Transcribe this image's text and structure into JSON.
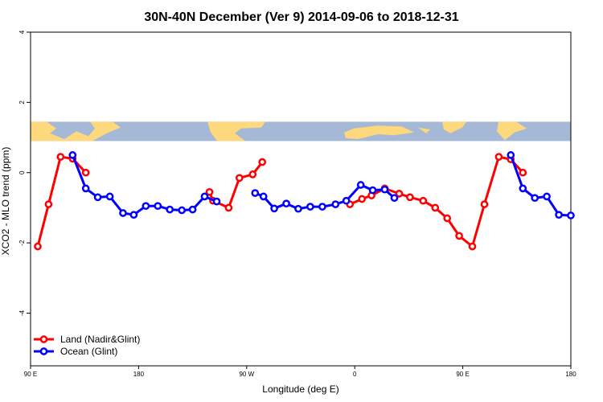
{
  "chart_data": {
    "type": "line",
    "title": "30N-40N December (Ver 9)   2014-09-06 to 2018-12-31",
    "xlabel": "Longitude (deg E)",
    "ylabel": "XCO2 - MLO trend (ppm)",
    "xlim": [
      90,
      540
    ],
    "ylim": [
      -5.5,
      4
    ],
    "x_ticks": [
      {
        "value": 90,
        "label": "90 E"
      },
      {
        "value": 180,
        "label": "180"
      },
      {
        "value": 270,
        "label": "90 W"
      },
      {
        "value": 360,
        "label": "0"
      },
      {
        "value": 450,
        "label": "90 E"
      },
      {
        "value": 540,
        "label": "180"
      }
    ],
    "y_ticks": [
      {
        "value": -4,
        "label": "-4"
      },
      {
        "value": -2,
        "label": "-2"
      },
      {
        "value": 0,
        "label": "0"
      },
      {
        "value": 2,
        "label": "2"
      },
      {
        "value": 4,
        "label": "4"
      }
    ],
    "map_band": {
      "ymin": 0.9,
      "ymax": 1.45,
      "ocean_color": "#a5b9d6",
      "land_color": "#fdd87c"
    },
    "series": [
      {
        "name": "Land (Nadir&Glint)",
        "color": "#ff0000",
        "segments": [
          [
            [
              96,
              -2.1
            ],
            [
              105,
              -0.9
            ],
            [
              115,
              0.45
            ],
            [
              125,
              0.4
            ],
            [
              136,
              0
            ]
          ],
          [
            [
              239,
              -0.55
            ],
            [
              242,
              -0.8
            ],
            [
              255,
              -1
            ],
            [
              264,
              -0.15
            ],
            [
              275,
              -0.05
            ],
            [
              283,
              0.3
            ]
          ],
          [
            [
              356,
              -0.9
            ],
            [
              366,
              -0.75
            ],
            [
              374,
              -0.65
            ],
            [
              385,
              -0.45
            ],
            [
              397,
              -0.6
            ],
            [
              406,
              -0.7
            ],
            [
              417,
              -0.8
            ],
            [
              427,
              -1
            ],
            [
              437,
              -1.3
            ],
            [
              447,
              -1.8
            ],
            [
              458,
              -2.1
            ],
            [
              468,
              -0.9
            ],
            [
              480,
              0.45
            ],
            [
              490,
              0.38
            ],
            [
              500,
              0
            ]
          ]
        ]
      },
      {
        "name": "Ocean (Glint)",
        "color": "#0000ff",
        "segments": [
          [
            [
              125,
              0.5
            ],
            [
              136,
              -0.45
            ],
            [
              146,
              -0.7
            ],
            [
              156,
              -0.68
            ],
            [
              167,
              -1.15
            ],
            [
              176,
              -1.2
            ],
            [
              186,
              -0.95
            ],
            [
              196,
              -0.95
            ],
            [
              206,
              -1.05
            ],
            [
              216,
              -1.07
            ],
            [
              225,
              -1.05
            ],
            [
              235,
              -0.68
            ],
            [
              245,
              -0.82
            ]
          ],
          [
            [
              277,
              -0.58
            ],
            [
              284,
              -0.68
            ],
            [
              293,
              -1.02
            ],
            [
              303,
              -0.88
            ],
            [
              313,
              -1.03
            ],
            [
              323,
              -0.97
            ],
            [
              333,
              -0.97
            ],
            [
              344,
              -0.9
            ],
            [
              353,
              -0.8
            ],
            [
              365,
              -0.35
            ],
            [
              375,
              -0.5
            ],
            [
              385,
              -0.48
            ],
            [
              393,
              -0.72
            ]
          ],
          [
            [
              490,
              0.5
            ],
            [
              500,
              -0.45
            ],
            [
              510,
              -0.72
            ],
            [
              520,
              -0.68
            ],
            [
              530,
              -1.2
            ],
            [
              540,
              -1.22
            ]
          ]
        ]
      }
    ],
    "legend": [
      {
        "label": "Land (Nadir&Glint)",
        "color": "#ff0000"
      },
      {
        "label": "Ocean (Glint)",
        "color": "#0000ff"
      }
    ],
    "legend_position": "bottom-left"
  }
}
